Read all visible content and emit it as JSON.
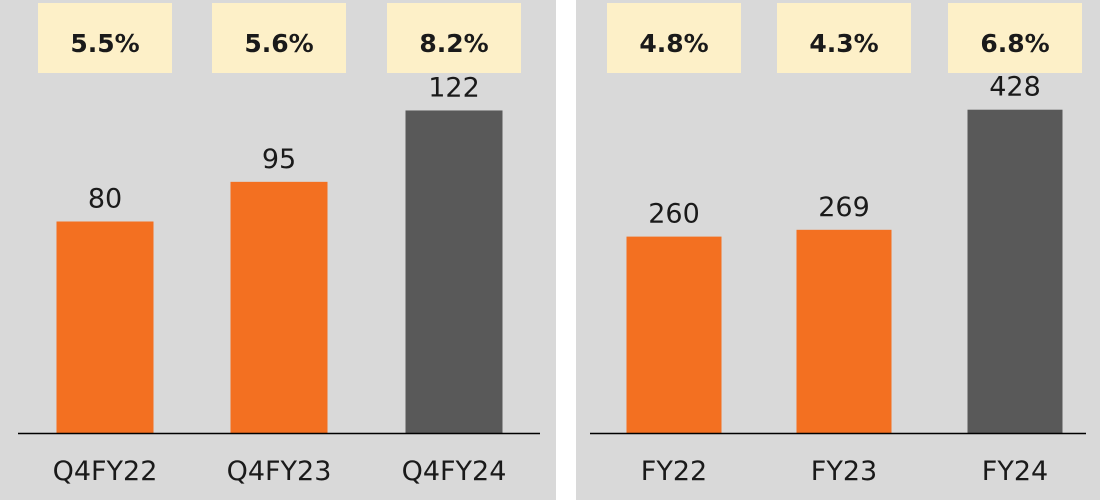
{
  "colors": {
    "background": "#d9d9d9",
    "badge": "#fdf0c8",
    "bar_orange": "#f37021",
    "bar_dark": "#595959",
    "axis": "#000000",
    "text": "#1a1a1a"
  },
  "chart_data": [
    {
      "type": "bar",
      "categories": [
        "Q4FY22",
        "Q4FY23",
        "Q4FY24"
      ],
      "values": [
        80,
        95,
        122
      ],
      "value_labels": [
        "80",
        "95",
        "122"
      ],
      "percent_badges": [
        "5.5%",
        "5.6%",
        "8.2%"
      ],
      "bar_colors": [
        "#f37021",
        "#f37021",
        "#595959"
      ],
      "title": "",
      "xlabel": "",
      "ylabel": "",
      "ylim": [
        0,
        160
      ],
      "grid": false
    },
    {
      "type": "bar",
      "categories": [
        "FY22",
        "FY23",
        "FY24"
      ],
      "values": [
        260,
        269,
        428
      ],
      "value_labels": [
        "260",
        "269",
        "428"
      ],
      "percent_badges": [
        "4.8%",
        "4.3%",
        "6.8%"
      ],
      "bar_colors": [
        "#f37021",
        "#f37021",
        "#595959"
      ],
      "title": "",
      "xlabel": "",
      "ylabel": "",
      "ylim": [
        0,
        560
      ],
      "grid": false
    }
  ]
}
